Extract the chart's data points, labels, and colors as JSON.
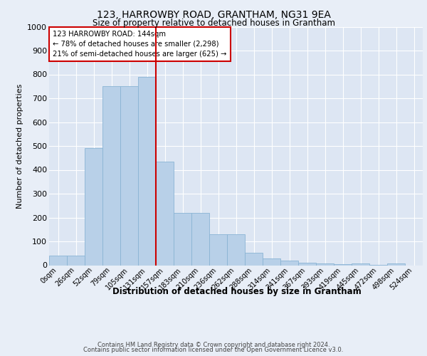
{
  "title1": "123, HARROWBY ROAD, GRANTHAM, NG31 9EA",
  "title2": "Size of property relative to detached houses in Grantham",
  "xlabel": "Distribution of detached houses by size in Grantham",
  "ylabel": "Number of detached properties",
  "footer1": "Contains HM Land Registry data © Crown copyright and database right 2024.",
  "footer2": "Contains public sector information licensed under the Open Government Licence v3.0.",
  "annotation_line1": "123 HARROWBY ROAD: 144sqm",
  "annotation_line2": "← 78% of detached houses are smaller (2,298)",
  "annotation_line3": "21% of semi-detached houses are larger (625) →",
  "bar_categories": [
    "0sqm",
    "26sqm",
    "52sqm",
    "79sqm",
    "105sqm",
    "131sqm",
    "157sqm",
    "183sqm",
    "210sqm",
    "236sqm",
    "262sqm",
    "288sqm",
    "314sqm",
    "341sqm",
    "367sqm",
    "393sqm",
    "419sqm",
    "445sqm",
    "472sqm",
    "498sqm",
    "524sqm"
  ],
  "bar_values": [
    40,
    40,
    490,
    750,
    750,
    790,
    435,
    220,
    220,
    130,
    130,
    52,
    28,
    18,
    11,
    7,
    5,
    6,
    1,
    7,
    0
  ],
  "bar_color": "#b8d0e8",
  "bar_edge_color": "#8ab4d4",
  "background_color": "#e8eef7",
  "plot_bg_color": "#dde6f3",
  "grid_color": "#ffffff",
  "ref_line_x": 5.5,
  "ref_line_color": "#cc0000",
  "annotation_box_color": "#cc0000",
  "ylim": [
    0,
    1000
  ],
  "yticks": [
    0,
    100,
    200,
    300,
    400,
    500,
    600,
    700,
    800,
    900,
    1000
  ]
}
